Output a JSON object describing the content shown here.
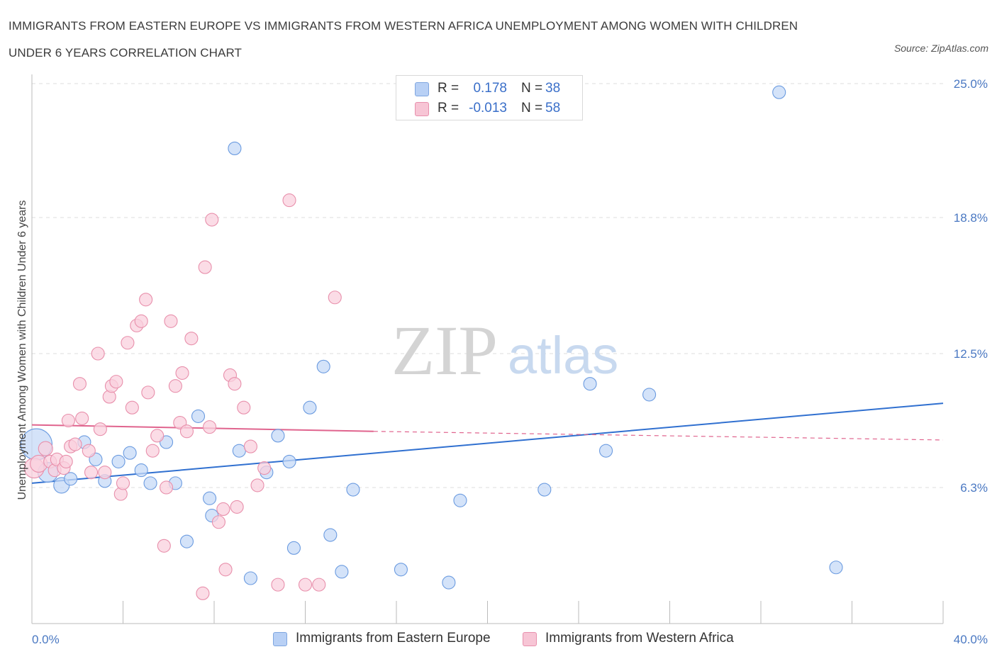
{
  "title": "IMMIGRANTS FROM EASTERN EUROPE VS IMMIGRANTS FROM WESTERN AFRICA UNEMPLOYMENT AMONG WOMEN WITH CHILDREN UNDER 6 YEARS CORRELATION CHART",
  "source": "Source: ZipAtlas.com",
  "watermark": {
    "zip": "ZIP",
    "atlas": "atlas"
  },
  "legend": {
    "rows": [
      {
        "r_label": "R =",
        "r_value": "0.178",
        "n_label": "N =",
        "n_value": "38",
        "color": "#b8d0f5",
        "border": "#7fa6e0"
      },
      {
        "r_label": "R =",
        "r_value": "-0.013",
        "n_label": "N =",
        "n_value": "58",
        "color": "#f7c5d5",
        "border": "#e890ad"
      }
    ]
  },
  "bottom_legend": [
    {
      "label": "Immigrants from Eastern Europe",
      "color": "#b8d0f5",
      "border": "#7fa6e0"
    },
    {
      "label": "Immigrants from Western Africa",
      "color": "#f7c5d5",
      "border": "#e890ad"
    }
  ],
  "chart_data": {
    "type": "scatter",
    "title": "IMMIGRANTS FROM EASTERN EUROPE VS IMMIGRANTS FROM WESTERN AFRICA UNEMPLOYMENT AMONG WOMEN WITH CHILDREN UNDER 6 YEARS CORRELATION CHART",
    "ylabel": "Unemployment Among Women with Children Under 6 years",
    "xlabel": "",
    "xlim": [
      0,
      40
    ],
    "ylim": [
      0,
      25
    ],
    "x_tick_labels": [
      "0.0%",
      "40.0%"
    ],
    "y_ticks": [
      6.3,
      12.5,
      18.8,
      25.0
    ],
    "y_tick_labels": [
      "6.3%",
      "12.5%",
      "18.8%",
      "25.0%"
    ],
    "grid": true,
    "legend_position": "top-center",
    "series": [
      {
        "name": "Immigrants from Eastern Europe",
        "color": "#6b9be0",
        "fill": "#c6daf7",
        "trend": {
          "x": [
            0,
            40
          ],
          "y": [
            6.5,
            10.2
          ],
          "style": "solid",
          "color": "#3070d0"
        },
        "points": [
          [
            0.2,
            8.3,
            22
          ],
          [
            0.7,
            7.0,
            14
          ],
          [
            1.3,
            6.4,
            11
          ],
          [
            1.7,
            6.7,
            9
          ],
          [
            2.3,
            8.4,
            9
          ],
          [
            2.8,
            7.6,
            9
          ],
          [
            3.2,
            6.6,
            9
          ],
          [
            3.8,
            7.5,
            9
          ],
          [
            4.3,
            7.9,
            9
          ],
          [
            4.8,
            7.1,
            9
          ],
          [
            5.2,
            6.5,
            9
          ],
          [
            5.9,
            8.4,
            9
          ],
          [
            6.3,
            6.5,
            9
          ],
          [
            6.8,
            3.8,
            9
          ],
          [
            7.3,
            9.6,
            9
          ],
          [
            7.8,
            5.8,
            9
          ],
          [
            7.9,
            5.0,
            9
          ],
          [
            8.9,
            22.0,
            9
          ],
          [
            9.1,
            8.0,
            9
          ],
          [
            9.6,
            2.1,
            9
          ],
          [
            10.3,
            7.0,
            9
          ],
          [
            10.8,
            8.7,
            9
          ],
          [
            11.3,
            7.5,
            9
          ],
          [
            11.5,
            3.5,
            9
          ],
          [
            12.2,
            10.0,
            9
          ],
          [
            12.8,
            11.9,
            9
          ],
          [
            13.1,
            4.1,
            9
          ],
          [
            13.6,
            2.4,
            9
          ],
          [
            14.1,
            6.2,
            9
          ],
          [
            16.2,
            2.5,
            9
          ],
          [
            18.3,
            1.9,
            9
          ],
          [
            18.8,
            5.7,
            9
          ],
          [
            22.5,
            6.2,
            9
          ],
          [
            24.5,
            11.1,
            9
          ],
          [
            25.2,
            8.0,
            9
          ],
          [
            27.1,
            10.6,
            9
          ],
          [
            32.8,
            24.6,
            9
          ],
          [
            35.3,
            2.6,
            9
          ]
        ]
      },
      {
        "name": "Immigrants from Western Africa",
        "color": "#e88fab",
        "fill": "#f9d0dd",
        "trend": {
          "x": [
            0,
            15
          ],
          "y": [
            9.2,
            8.9
          ],
          "style": "solid",
          "color": "#e0648e",
          "dashed_x": [
            15,
            40
          ],
          "dashed_y": [
            8.9,
            8.5
          ]
        },
        "points": [
          [
            0.1,
            7.2,
            14
          ],
          [
            0.3,
            7.4,
            12
          ],
          [
            0.6,
            8.1,
            10
          ],
          [
            0.8,
            7.5,
            9
          ],
          [
            1.0,
            7.1,
            9
          ],
          [
            1.1,
            7.6,
            9
          ],
          [
            1.4,
            7.2,
            9
          ],
          [
            1.5,
            7.5,
            9
          ],
          [
            1.6,
            9.4,
            9
          ],
          [
            1.7,
            8.2,
            9
          ],
          [
            1.9,
            8.3,
            9
          ],
          [
            2.1,
            11.1,
            9
          ],
          [
            2.2,
            9.5,
            9
          ],
          [
            2.5,
            8.0,
            9
          ],
          [
            2.6,
            7.0,
            9
          ],
          [
            2.9,
            12.5,
            9
          ],
          [
            3.0,
            9.0,
            9
          ],
          [
            3.2,
            7.0,
            9
          ],
          [
            3.4,
            10.5,
            9
          ],
          [
            3.5,
            11.0,
            9
          ],
          [
            3.7,
            11.2,
            9
          ],
          [
            3.9,
            6.0,
            9
          ],
          [
            4.0,
            6.5,
            9
          ],
          [
            4.2,
            13.0,
            9
          ],
          [
            4.4,
            10.0,
            9
          ],
          [
            4.6,
            13.8,
            9
          ],
          [
            4.8,
            14.0,
            9
          ],
          [
            5.0,
            15.0,
            9
          ],
          [
            5.1,
            10.7,
            9
          ],
          [
            5.3,
            8.0,
            9
          ],
          [
            5.5,
            8.7,
            9
          ],
          [
            5.8,
            3.6,
            9
          ],
          [
            5.9,
            6.3,
            9
          ],
          [
            6.1,
            14.0,
            9
          ],
          [
            6.3,
            11.0,
            9
          ],
          [
            6.5,
            9.3,
            9
          ],
          [
            6.6,
            11.6,
            9
          ],
          [
            6.8,
            8.9,
            9
          ],
          [
            7.0,
            13.2,
            9
          ],
          [
            7.5,
            1.4,
            9
          ],
          [
            7.6,
            16.5,
            9
          ],
          [
            7.8,
            9.1,
            9
          ],
          [
            7.9,
            18.7,
            9
          ],
          [
            8.2,
            4.7,
            9
          ],
          [
            8.4,
            5.3,
            9
          ],
          [
            8.5,
            2.5,
            9
          ],
          [
            8.7,
            11.5,
            9
          ],
          [
            8.9,
            11.1,
            9
          ],
          [
            9.0,
            5.4,
            9
          ],
          [
            9.3,
            10.0,
            9
          ],
          [
            9.6,
            8.2,
            9
          ],
          [
            9.9,
            6.4,
            9
          ],
          [
            10.2,
            7.2,
            9
          ],
          [
            10.8,
            1.8,
            9
          ],
          [
            11.3,
            19.6,
            9
          ],
          [
            12.0,
            1.8,
            9
          ],
          [
            12.6,
            1.8,
            9
          ],
          [
            13.3,
            15.1,
            9
          ]
        ]
      }
    ]
  }
}
